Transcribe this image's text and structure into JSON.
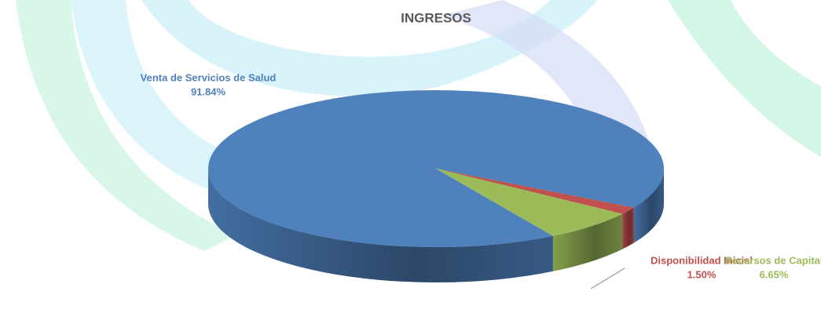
{
  "chart_data": {
    "type": "pie",
    "title": "INGRESOS",
    "categories": [
      "Venta de Servicios de Salud",
      "Disponibilidad Inicial",
      "Recursos de Capital"
    ],
    "values": [
      91.84,
      1.5,
      6.65
    ],
    "value_labels": [
      "91.84%",
      "1.50%",
      "6.65%"
    ],
    "colors": [
      "#4f81bd",
      "#c0504d",
      "#9bbb59"
    ]
  }
}
